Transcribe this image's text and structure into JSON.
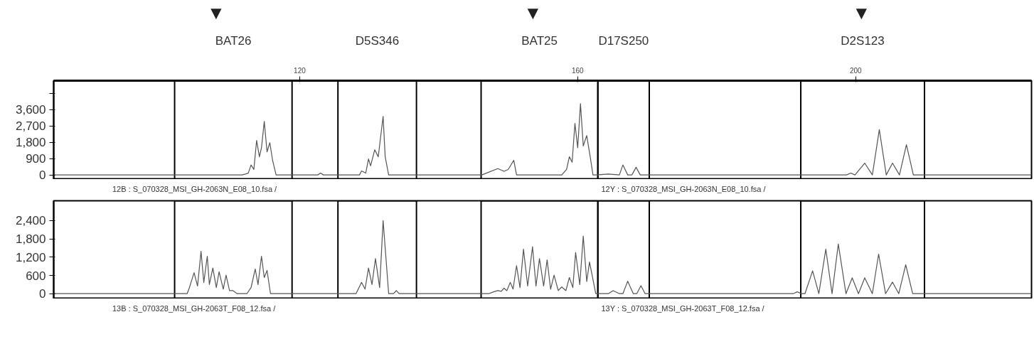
{
  "chart_data": [
    {
      "type": "line",
      "xlim": [
        84.6,
        225.3
      ],
      "ylim": [
        -250,
        5200
      ],
      "xticks": [
        120,
        160,
        200
      ],
      "yticks": [
        0,
        {
          "value": 900,
          "label": "900"
        },
        {
          "value": 1800,
          "label": "1,800"
        },
        {
          "value": 2700,
          "label": "2,700"
        },
        {
          "value": 3600,
          "label": "3,600"
        },
        {
          "value": 4500,
          "label": null
        }
      ],
      "tick_labels": "xy",
      "grid": false,
      "marker": "none",
      "line_style": "solid",
      "series": [
        {
          "color": "#555555",
          "x": [
            84.6,
            111.7,
            112.2,
            112.6,
            113.0,
            113.4,
            113.8,
            114.2,
            114.5,
            114.9,
            115.3,
            115.7,
            116.1,
            116.6,
            122.6,
            123.0,
            123.4,
            128.6,
            128.9,
            129.5,
            129.9,
            130.2,
            130.8,
            131.3,
            132.0,
            132.3,
            132.8,
            146.2,
            148.5,
            149.4,
            150.0,
            150.8,
            151.2,
            157.7,
            158.4,
            158.8,
            159.2,
            159.6,
            160.0,
            160.4,
            160.8,
            161.3,
            161.8,
            162.2,
            162.7,
            164.4,
            166.0,
            166.5,
            167.2,
            167.8,
            168.4,
            169.0,
            169.6,
            198.7,
            199.3,
            199.9,
            201.3,
            202.4,
            203.4,
            204.4,
            205.3,
            206.3,
            207.3,
            208.3,
            225.3
          ],
          "values": [
            0,
            0,
            50,
            100,
            550,
            300,
            1900,
            1000,
            1500,
            2950,
            1270,
            1780,
            800,
            0,
            0,
            100,
            0,
            0,
            220,
            100,
            880,
            500,
            1390,
            1000,
            3230,
            1000,
            0,
            0,
            350,
            200,
            300,
            810,
            0,
            0,
            300,
            1000,
            700,
            2840,
            1500,
            3930,
            1600,
            2170,
            1000,
            0,
            0,
            50,
            0,
            550,
            0,
            0,
            420,
            0,
            0,
            0,
            100,
            0,
            650,
            0,
            2500,
            0,
            650,
            0,
            1670,
            0,
            0
          ]
        }
      ],
      "bands": [
        {
          "axis": "x",
          "from": 102.0,
          "to": 118.9,
          "label": "BAT26"
        },
        {
          "axis": "x",
          "from": 125.5,
          "to": 136.8,
          "label": "D5S346"
        },
        {
          "axis": "x",
          "from": 146.1,
          "to": 162.9,
          "label": "BAT25"
        },
        {
          "axis": "x",
          "from": 162.9,
          "to": 170.3,
          "label": "D17S250"
        },
        {
          "axis": "x",
          "from": 192.1,
          "to": 209.9,
          "label": "D2S123"
        }
      ],
      "annotations": [
        "▼",
        "▼",
        "▼",
        "12B : S_070328_MSI_GH-2063N_E08_10.fsa /",
        "12Y : S_070328_MSI_GH-2063N_E08_10.fsa /"
      ]
    },
    {
      "type": "line",
      "xlim": [
        84.6,
        225.3
      ],
      "ylim": [
        -170,
        3050
      ],
      "yticks": [
        0,
        {
          "value": 600,
          "label": "600"
        },
        {
          "value": 1200,
          "label": "1,200"
        },
        {
          "value": 1800,
          "label": "1,800"
        },
        {
          "value": 2400,
          "label": "2,400"
        }
      ],
      "tick_labels": "y",
      "grid": false,
      "marker": "none",
      "line_style": "solid",
      "series": [
        {
          "color": "#555555",
          "x": [
            84.6,
            103.8,
            104.1,
            104.8,
            105.3,
            105.8,
            106.2,
            106.7,
            107.0,
            107.5,
            108.0,
            108.4,
            109.0,
            109.4,
            109.9,
            110.4,
            111.0,
            112.4,
            113.0,
            113.6,
            114.0,
            114.5,
            114.9,
            115.3,
            115.8,
            116.5,
            128.1,
            128.9,
            129.4,
            129.9,
            130.4,
            130.9,
            131.5,
            132.0,
            132.8,
            133.5,
            133.9,
            134.3,
            147.2,
            147.9,
            148.5,
            149.0,
            149.4,
            149.8,
            150.3,
            150.7,
            151.2,
            151.7,
            152.2,
            152.8,
            153.5,
            154.0,
            154.5,
            155.1,
            155.6,
            156.1,
            156.6,
            157.2,
            157.7,
            158.3,
            158.8,
            159.3,
            159.7,
            160.3,
            160.8,
            161.3,
            161.7,
            162.6,
            164.4,
            165.1,
            166.0,
            166.5,
            167.2,
            168.0,
            168.5,
            169.1,
            169.7,
            191.0,
            191.6,
            192.2,
            192.7,
            193.8,
            194.7,
            195.7,
            196.6,
            197.5,
            198.6,
            199.5,
            200.4,
            201.3,
            202.4,
            203.3,
            204.3,
            205.3,
            206.2,
            207.2,
            208.2,
            225.3
          ],
          "values": [
            0,
            0,
            180,
            690,
            250,
            1390,
            370,
            1230,
            300,
            840,
            200,
            720,
            150,
            610,
            100,
            100,
            0,
            0,
            200,
            810,
            300,
            1230,
            530,
            760,
            0,
            0,
            0,
            370,
            150,
            840,
            300,
            1150,
            200,
            2400,
            0,
            0,
            100,
            0,
            0,
            60,
            100,
            80,
            180,
            100,
            370,
            150,
            920,
            200,
            1460,
            250,
            1540,
            250,
            1150,
            250,
            1110,
            150,
            610,
            100,
            220,
            100,
            530,
            200,
            1350,
            300,
            1890,
            400,
            1040,
            0,
            0,
            100,
            0,
            0,
            410,
            0,
            0,
            260,
            0,
            0,
            60,
            0,
            0,
            750,
            0,
            1460,
            0,
            1630,
            0,
            520,
            0,
            520,
            0,
            1300,
            0,
            380,
            0,
            950,
            0,
            0
          ]
        }
      ],
      "bands": [
        {
          "axis": "x",
          "from": 102.0,
          "to": 118.9
        },
        {
          "axis": "x",
          "from": 125.5,
          "to": 136.8
        },
        {
          "axis": "x",
          "from": 146.1,
          "to": 162.9
        },
        {
          "axis": "x",
          "from": 162.9,
          "to": 170.3
        },
        {
          "axis": "x",
          "from": 192.1,
          "to": 209.9
        }
      ],
      "annotations": [
        "13B : S_070328_MSI_GH-2063T_F08_12.fsa /",
        "13Y : S_070328_MSI_GH-2063T_F08_12.fsa /"
      ]
    }
  ]
}
